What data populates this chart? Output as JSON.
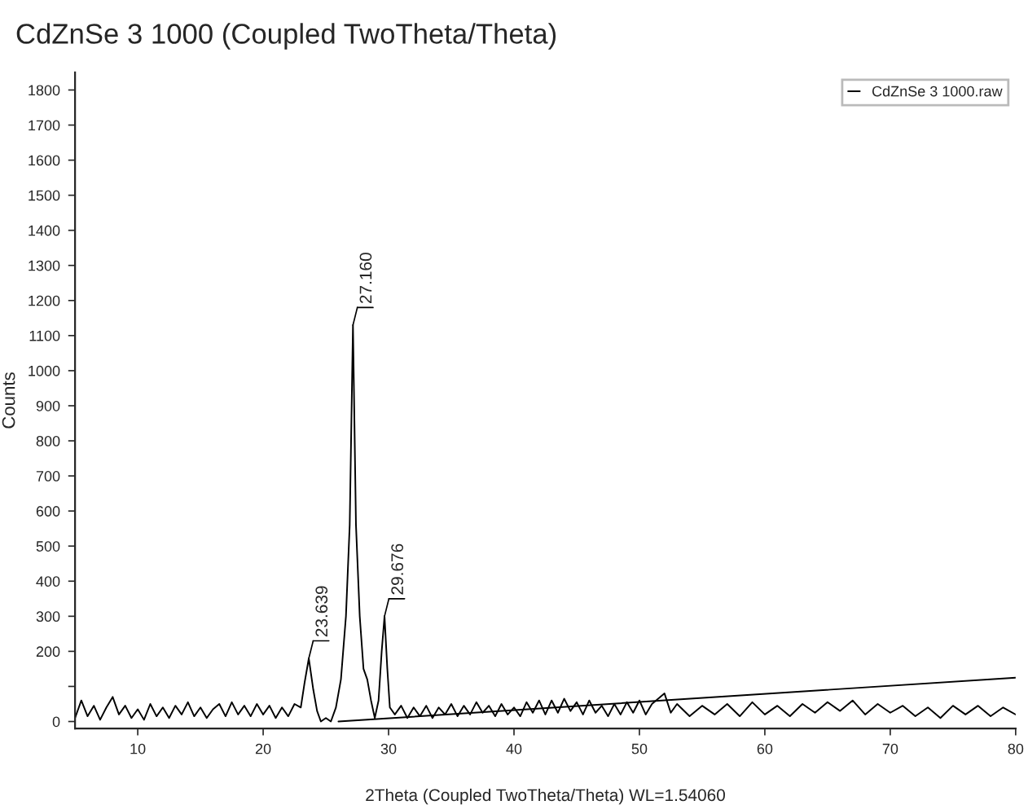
{
  "chart_data": {
    "type": "line",
    "title": "CdZnSe 3 1000 (Coupled TwoTheta/Theta)",
    "xlabel": "2Theta (Coupled TwoTheta/Theta) WL=1.54060",
    "ylabel": "Counts",
    "xlim": [
      5,
      80
    ],
    "xticks": [
      10,
      20,
      30,
      40,
      50,
      60,
      70,
      80
    ],
    "ylim": [
      -20,
      1850
    ],
    "yticks": [
      0,
      {
        "value": 100,
        "label": null
      },
      200,
      300,
      400,
      500,
      600,
      700,
      800,
      900,
      1000,
      1100,
      1200,
      1300,
      1400,
      1500,
      1600,
      1700,
      1800
    ],
    "grid": false,
    "legend": "top right",
    "marker": "none",
    "line_style": "solid",
    "series": [
      {
        "name": "CdZnSe 3 1000.raw",
        "color": "#000000",
        "x": [
          5,
          5.5,
          6,
          6.5,
          7,
          7.5,
          8,
          8.5,
          9,
          9.5,
          10,
          10.5,
          11,
          11.5,
          12,
          12.5,
          13,
          13.5,
          14,
          14.5,
          15,
          15.5,
          16,
          16.5,
          17,
          17.5,
          18,
          18.5,
          19,
          19.5,
          20,
          20.5,
          21,
          21.5,
          22,
          22.5,
          23,
          23.3,
          23.639,
          24,
          24.3,
          24.6,
          25,
          25.4,
          25.8,
          26.2,
          26.6,
          26.9,
          27.16,
          27.4,
          27.7,
          28,
          28.3,
          28.6,
          28.9,
          29.2,
          29.45,
          29.676,
          29.9,
          30.1,
          30.5,
          31,
          31.5,
          32,
          32.5,
          33,
          33.5,
          34,
          34.5,
          35,
          35.5,
          36,
          36.5,
          37,
          37.5,
          38,
          38.5,
          39,
          39.5,
          40,
          40.5,
          41,
          41.5,
          42,
          42.5,
          43,
          43.5,
          44,
          44.5,
          45,
          45.5,
          46,
          46.5,
          47,
          47.5,
          48,
          48.5,
          49,
          49.5,
          50,
          50.5,
          51,
          52,
          52.5,
          53,
          54,
          55,
          56,
          57,
          58,
          59,
          60,
          61,
          62,
          63,
          64,
          65,
          66,
          67,
          68,
          69,
          70,
          71,
          72,
          73,
          74,
          75,
          76,
          77,
          78,
          79,
          80
        ],
        "values": [
          10,
          60,
          15,
          45,
          5,
          40,
          70,
          20,
          45,
          10,
          35,
          5,
          50,
          15,
          40,
          10,
          45,
          20,
          55,
          15,
          40,
          10,
          35,
          50,
          15,
          55,
          20,
          45,
          15,
          50,
          20,
          45,
          10,
          40,
          15,
          50,
          40,
          110,
          180,
          90,
          30,
          0,
          10,
          0,
          40,
          120,
          300,
          560,
          1130,
          560,
          300,
          150,
          120,
          60,
          10,
          60,
          200,
          300,
          150,
          40,
          20,
          45,
          10,
          40,
          15,
          45,
          10,
          40,
          20,
          50,
          15,
          45,
          20,
          55,
          25,
          45,
          15,
          50,
          20,
          40,
          15,
          55,
          25,
          60,
          20,
          60,
          25,
          65,
          30,
          55,
          20,
          60,
          25,
          45,
          15,
          50,
          20,
          55,
          25,
          60,
          20,
          50,
          80,
          25,
          50,
          15,
          45,
          20,
          50,
          15,
          55,
          20,
          45,
          15,
          50,
          25,
          55,
          30,
          60,
          20,
          50,
          25,
          45,
          15,
          40,
          10,
          45,
          20,
          45,
          15,
          40,
          20
        ]
      },
      {
        "color": "#000000",
        "x": [
          26,
          80
        ],
        "values": [
          0,
          125
        ]
      }
    ],
    "annotations": [
      {
        "text": "23.639",
        "x": 23.639,
        "y": 180
      },
      {
        "text": "27.160",
        "x": 27.16,
        "y": 1130
      },
      {
        "text": "29.676",
        "x": 29.676,
        "y": 300
      }
    ]
  }
}
